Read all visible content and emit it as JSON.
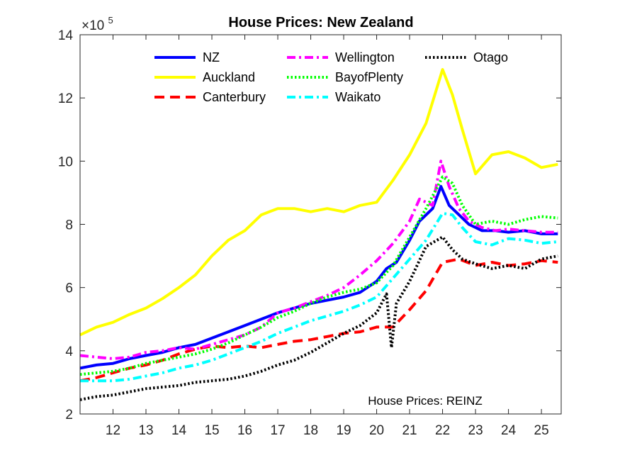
{
  "chart_data": {
    "type": "line",
    "title": "House Prices: New Zealand",
    "annotation": "House Prices: REINZ",
    "exponent_label": {
      "base": "×10",
      "power": "5"
    },
    "xlabel": "",
    "ylabel": "",
    "xlim": [
      11.0,
      25.6
    ],
    "ylim": [
      2,
      14
    ],
    "xticks": [
      12,
      13,
      14,
      15,
      16,
      17,
      18,
      19,
      20,
      21,
      22,
      23,
      24,
      25
    ],
    "xtick_labels": [
      "12",
      "13",
      "14",
      "15",
      "16",
      "17",
      "18",
      "19",
      "20",
      "21",
      "22",
      "23",
      "24",
      "25"
    ],
    "yticks": [
      2,
      4,
      6,
      8,
      10,
      12,
      14
    ],
    "ytick_labels": [
      "2",
      "4",
      "6",
      "8",
      "10",
      "12",
      "14"
    ],
    "legend_position": "top",
    "series": [
      {
        "name": "NZ",
        "color": "#0000FF",
        "style": "solid",
        "points": [
          [
            11.0,
            3.45
          ],
          [
            11.5,
            3.55
          ],
          [
            12.0,
            3.6
          ],
          [
            12.5,
            3.75
          ],
          [
            13.0,
            3.85
          ],
          [
            13.5,
            3.95
          ],
          [
            14.0,
            4.1
          ],
          [
            14.5,
            4.2
          ],
          [
            15.0,
            4.4
          ],
          [
            15.5,
            4.6
          ],
          [
            16.0,
            4.8
          ],
          [
            16.5,
            5.0
          ],
          [
            17.0,
            5.2
          ],
          [
            17.5,
            5.35
          ],
          [
            18.0,
            5.5
          ],
          [
            18.5,
            5.6
          ],
          [
            19.0,
            5.7
          ],
          [
            19.5,
            5.85
          ],
          [
            20.0,
            6.2
          ],
          [
            20.3,
            6.6
          ],
          [
            20.6,
            6.8
          ],
          [
            21.0,
            7.5
          ],
          [
            21.3,
            8.1
          ],
          [
            21.7,
            8.5
          ],
          [
            21.95,
            9.2
          ],
          [
            22.2,
            8.6
          ],
          [
            22.5,
            8.3
          ],
          [
            22.8,
            8.0
          ],
          [
            23.2,
            7.8
          ],
          [
            23.6,
            7.8
          ],
          [
            24.0,
            7.75
          ],
          [
            24.5,
            7.8
          ],
          [
            25.0,
            7.7
          ],
          [
            25.5,
            7.7
          ]
        ]
      },
      {
        "name": "Auckland",
        "color": "#FFFF00",
        "style": "solid",
        "points": [
          [
            11.0,
            4.5
          ],
          [
            11.5,
            4.75
          ],
          [
            12.0,
            4.9
          ],
          [
            12.5,
            5.15
          ],
          [
            13.0,
            5.35
          ],
          [
            13.5,
            5.65
          ],
          [
            14.0,
            6.0
          ],
          [
            14.5,
            6.4
          ],
          [
            15.0,
            7.0
          ],
          [
            15.5,
            7.5
          ],
          [
            16.0,
            7.8
          ],
          [
            16.5,
            8.3
          ],
          [
            17.0,
            8.5
          ],
          [
            17.5,
            8.5
          ],
          [
            18.0,
            8.4
          ],
          [
            18.5,
            8.5
          ],
          [
            19.0,
            8.4
          ],
          [
            19.5,
            8.6
          ],
          [
            20.0,
            8.7
          ],
          [
            20.5,
            9.4
          ],
          [
            21.0,
            10.2
          ],
          [
            21.5,
            11.2
          ],
          [
            22.0,
            12.9
          ],
          [
            22.3,
            12.1
          ],
          [
            22.6,
            11.0
          ],
          [
            23.0,
            9.6
          ],
          [
            23.5,
            10.2
          ],
          [
            24.0,
            10.3
          ],
          [
            24.5,
            10.1
          ],
          [
            25.0,
            9.8
          ],
          [
            25.5,
            9.9
          ]
        ]
      },
      {
        "name": "Canterbury",
        "color": "#FF0000",
        "style": "dashed",
        "points": [
          [
            11.0,
            3.05
          ],
          [
            11.5,
            3.15
          ],
          [
            12.0,
            3.3
          ],
          [
            12.5,
            3.45
          ],
          [
            13.0,
            3.55
          ],
          [
            13.5,
            3.7
          ],
          [
            14.0,
            3.9
          ],
          [
            14.5,
            4.05
          ],
          [
            15.0,
            4.15
          ],
          [
            15.5,
            4.1
          ],
          [
            16.0,
            4.15
          ],
          [
            16.5,
            4.1
          ],
          [
            17.0,
            4.2
          ],
          [
            17.5,
            4.3
          ],
          [
            18.0,
            4.35
          ],
          [
            18.5,
            4.45
          ],
          [
            19.0,
            4.55
          ],
          [
            19.5,
            4.6
          ],
          [
            20.0,
            4.75
          ],
          [
            20.5,
            4.75
          ],
          [
            21.0,
            5.3
          ],
          [
            21.5,
            5.9
          ],
          [
            22.0,
            6.8
          ],
          [
            22.5,
            6.9
          ],
          [
            23.0,
            6.7
          ],
          [
            23.5,
            6.8
          ],
          [
            24.0,
            6.7
          ],
          [
            24.5,
            6.75
          ],
          [
            25.0,
            6.85
          ],
          [
            25.5,
            6.8
          ]
        ]
      },
      {
        "name": "Wellington",
        "color": "#FF00FF",
        "style": "dashdot",
        "points": [
          [
            11.0,
            3.85
          ],
          [
            11.5,
            3.8
          ],
          [
            12.0,
            3.75
          ],
          [
            12.5,
            3.8
          ],
          [
            13.0,
            3.95
          ],
          [
            13.5,
            4.0
          ],
          [
            14.0,
            4.1
          ],
          [
            14.5,
            4.05
          ],
          [
            15.0,
            4.2
          ],
          [
            15.5,
            4.35
          ],
          [
            16.0,
            4.5
          ],
          [
            16.5,
            4.75
          ],
          [
            17.0,
            5.2
          ],
          [
            17.5,
            5.35
          ],
          [
            18.0,
            5.55
          ],
          [
            18.5,
            5.75
          ],
          [
            19.0,
            6.0
          ],
          [
            19.5,
            6.4
          ],
          [
            20.0,
            6.85
          ],
          [
            20.5,
            7.4
          ],
          [
            21.0,
            8.1
          ],
          [
            21.3,
            8.8
          ],
          [
            21.7,
            8.6
          ],
          [
            21.95,
            10.0
          ],
          [
            22.2,
            9.2
          ],
          [
            22.5,
            8.5
          ],
          [
            22.8,
            8.1
          ],
          [
            23.2,
            7.9
          ],
          [
            23.6,
            7.8
          ],
          [
            24.0,
            7.85
          ],
          [
            24.5,
            7.8
          ],
          [
            25.0,
            7.75
          ],
          [
            25.5,
            7.75
          ]
        ]
      },
      {
        "name": "BayofPlenty",
        "color": "#00FF00",
        "style": "dotted",
        "points": [
          [
            11.0,
            3.25
          ],
          [
            11.5,
            3.3
          ],
          [
            12.0,
            3.35
          ],
          [
            12.5,
            3.45
          ],
          [
            13.0,
            3.6
          ],
          [
            13.5,
            3.7
          ],
          [
            14.0,
            3.8
          ],
          [
            14.5,
            3.9
          ],
          [
            15.0,
            4.05
          ],
          [
            15.5,
            4.25
          ],
          [
            16.0,
            4.5
          ],
          [
            16.5,
            4.75
          ],
          [
            17.0,
            5.05
          ],
          [
            17.5,
            5.25
          ],
          [
            18.0,
            5.5
          ],
          [
            18.5,
            5.7
          ],
          [
            19.0,
            5.85
          ],
          [
            19.5,
            5.95
          ],
          [
            20.0,
            6.15
          ],
          [
            20.5,
            6.7
          ],
          [
            21.0,
            7.6
          ],
          [
            21.5,
            8.5
          ],
          [
            22.0,
            9.5
          ],
          [
            22.3,
            9.3
          ],
          [
            22.6,
            8.6
          ],
          [
            23.0,
            8.0
          ],
          [
            23.5,
            8.1
          ],
          [
            24.0,
            8.0
          ],
          [
            24.5,
            8.15
          ],
          [
            25.0,
            8.25
          ],
          [
            25.5,
            8.2
          ]
        ]
      },
      {
        "name": "Waikato",
        "color": "#00FFFF",
        "style": "dashdot",
        "points": [
          [
            11.0,
            3.05
          ],
          [
            11.5,
            3.05
          ],
          [
            12.0,
            3.05
          ],
          [
            12.5,
            3.1
          ],
          [
            13.0,
            3.2
          ],
          [
            13.5,
            3.3
          ],
          [
            14.0,
            3.45
          ],
          [
            14.5,
            3.55
          ],
          [
            15.0,
            3.7
          ],
          [
            15.5,
            3.9
          ],
          [
            16.0,
            4.1
          ],
          [
            16.5,
            4.3
          ],
          [
            17.0,
            4.55
          ],
          [
            17.5,
            4.75
          ],
          [
            18.0,
            4.95
          ],
          [
            18.5,
            5.1
          ],
          [
            19.0,
            5.25
          ],
          [
            19.5,
            5.45
          ],
          [
            20.0,
            5.7
          ],
          [
            20.5,
            6.3
          ],
          [
            21.0,
            6.9
          ],
          [
            21.5,
            7.5
          ],
          [
            22.0,
            8.35
          ],
          [
            22.3,
            8.3
          ],
          [
            22.6,
            7.9
          ],
          [
            23.0,
            7.45
          ],
          [
            23.5,
            7.35
          ],
          [
            24.0,
            7.55
          ],
          [
            24.5,
            7.5
          ],
          [
            25.0,
            7.4
          ],
          [
            25.5,
            7.45
          ]
        ]
      },
      {
        "name": "Otago",
        "color": "#000000",
        "style": "dotted",
        "points": [
          [
            11.0,
            2.45
          ],
          [
            11.5,
            2.55
          ],
          [
            12.0,
            2.6
          ],
          [
            12.5,
            2.7
          ],
          [
            13.0,
            2.8
          ],
          [
            13.5,
            2.85
          ],
          [
            14.0,
            2.9
          ],
          [
            14.5,
            3.0
          ],
          [
            15.0,
            3.05
          ],
          [
            15.5,
            3.1
          ],
          [
            16.0,
            3.2
          ],
          [
            16.5,
            3.35
          ],
          [
            17.0,
            3.55
          ],
          [
            17.5,
            3.7
          ],
          [
            18.0,
            3.95
          ],
          [
            18.5,
            4.25
          ],
          [
            19.0,
            4.55
          ],
          [
            19.5,
            4.8
          ],
          [
            20.0,
            5.2
          ],
          [
            20.3,
            5.8
          ],
          [
            20.45,
            4.1
          ],
          [
            20.6,
            5.5
          ],
          [
            21.0,
            6.2
          ],
          [
            21.5,
            7.3
          ],
          [
            22.0,
            7.6
          ],
          [
            22.3,
            7.2
          ],
          [
            22.6,
            6.9
          ],
          [
            23.0,
            6.75
          ],
          [
            23.5,
            6.6
          ],
          [
            24.0,
            6.7
          ],
          [
            24.5,
            6.6
          ],
          [
            25.0,
            6.9
          ],
          [
            25.5,
            7.0
          ]
        ]
      }
    ]
  }
}
